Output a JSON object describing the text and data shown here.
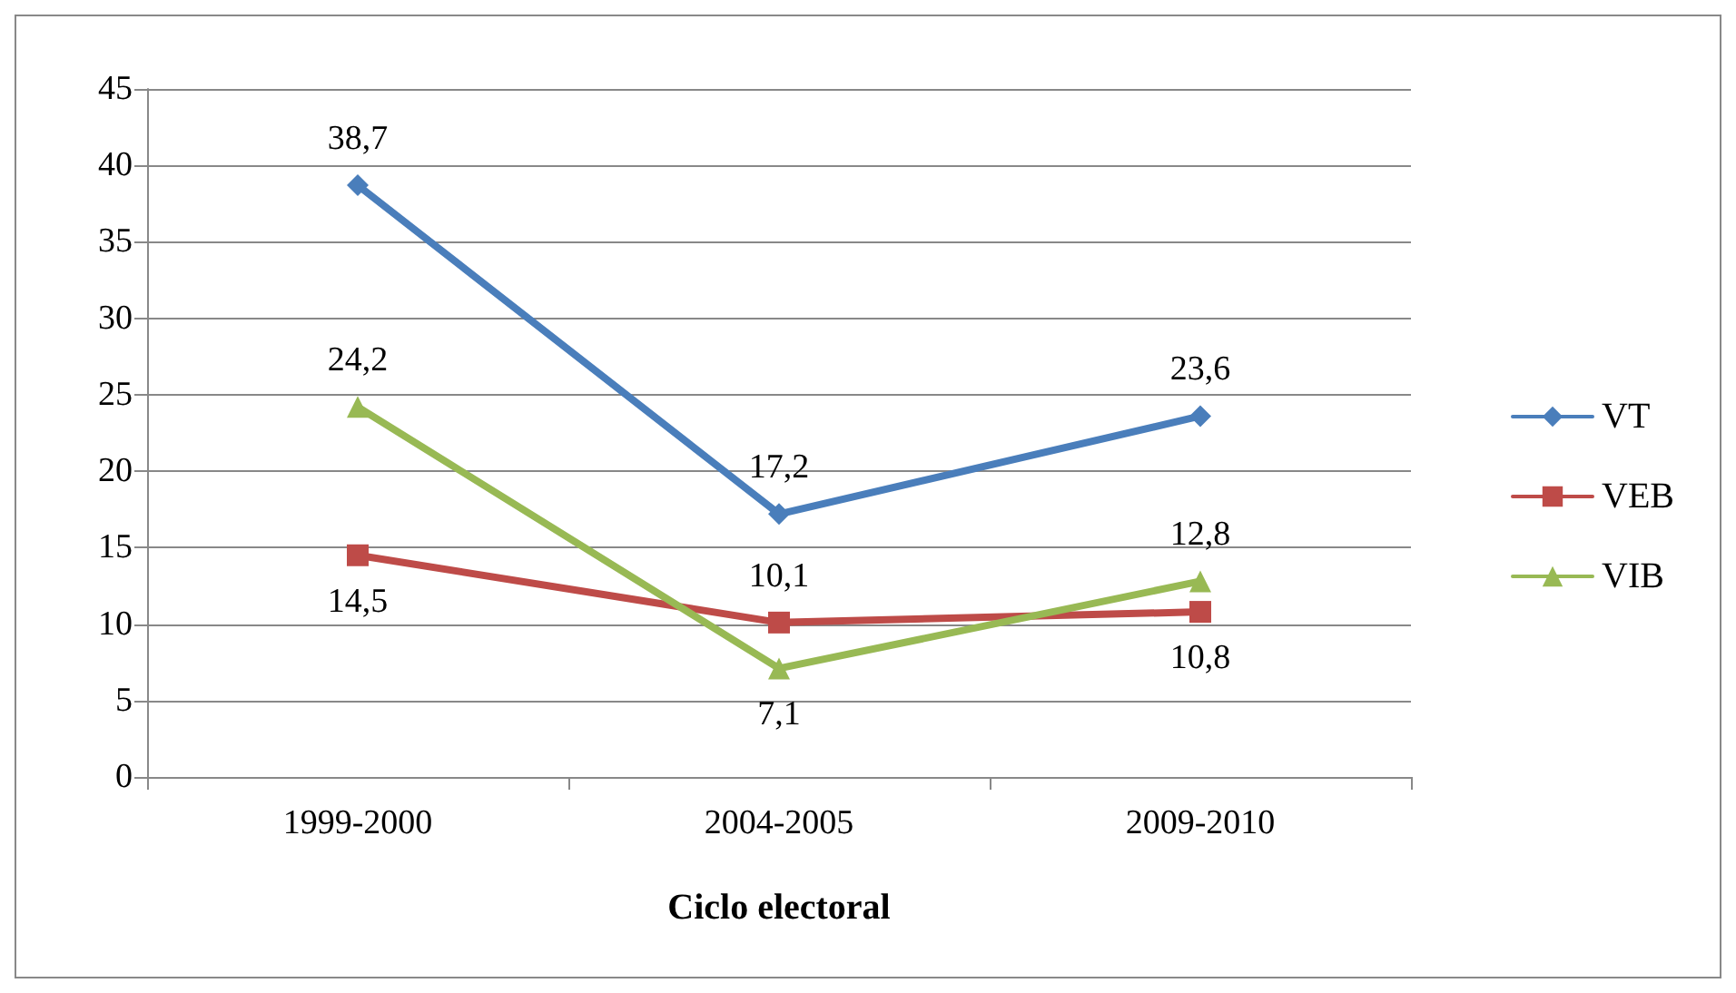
{
  "chart_data": {
    "type": "line",
    "xlabel": "Ciclo electoral",
    "categories": [
      "1999-2000",
      "2004-2005",
      "2009-2010"
    ],
    "series": [
      {
        "name": "VT",
        "color": "#4a7ebb",
        "marker": "diamond",
        "values": [
          38.7,
          17.2,
          23.6
        ],
        "value_labels": [
          "38,7",
          "17,2",
          "23,6"
        ]
      },
      {
        "name": "VEB",
        "color": "#be4b48",
        "marker": "square",
        "values": [
          14.5,
          10.1,
          10.8
        ],
        "value_labels": [
          "14,5",
          "10,1",
          "10,8"
        ]
      },
      {
        "name": "VIB",
        "color": "#98b954",
        "marker": "triangle",
        "values": [
          24.2,
          7.1,
          12.8
        ],
        "value_labels": [
          "24,2",
          "7,1",
          "12,8"
        ]
      }
    ],
    "ylim": [
      0,
      45
    ],
    "yticks": [
      0,
      5,
      10,
      15,
      20,
      25,
      30,
      35,
      40,
      45
    ],
    "grid": "y",
    "legend": "right",
    "line_style": "solid"
  }
}
